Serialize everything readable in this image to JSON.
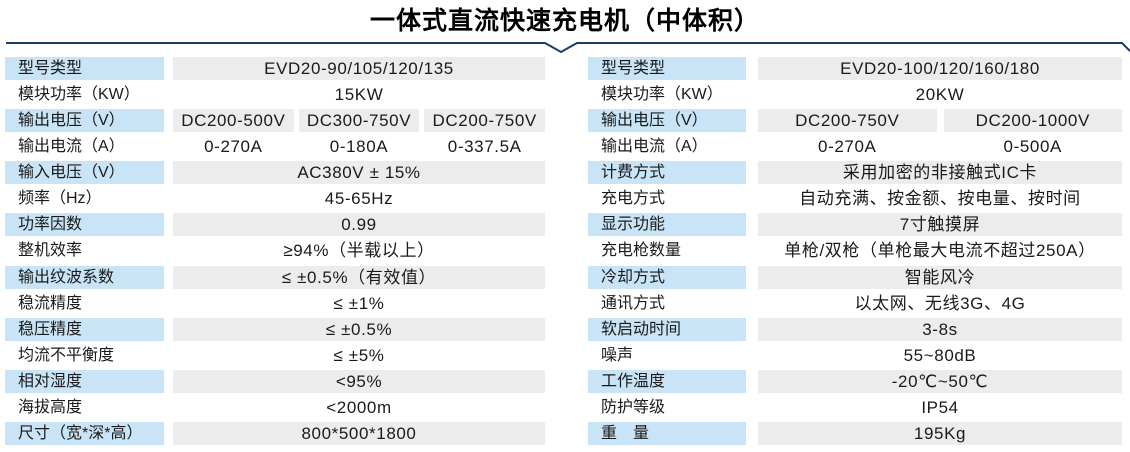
{
  "title": "一体式直流快速充电机（中体积）",
  "colors": {
    "header_rule": "#1e3a66",
    "label_background": "#c9e4f6",
    "value_background": "#ececec",
    "text": "#1a1a1a"
  },
  "left_table": {
    "rows": [
      {
        "label": "型号类型",
        "values": [
          "EVD20-90/105/120/135"
        ]
      },
      {
        "label": "模块功率（KW）",
        "values": [
          "15KW"
        ]
      },
      {
        "label": "输出电压（V）",
        "values": [
          "DC200-500V",
          "DC300-750V",
          "DC200-750V"
        ]
      },
      {
        "label": "输出电流（A）",
        "values": [
          "0-270A",
          "0-180A",
          "0-337.5A"
        ]
      },
      {
        "label": "输入电压（V）",
        "values": [
          "AC380V ± 15%"
        ]
      },
      {
        "label": "频率（Hz）",
        "values": [
          "45-65Hz"
        ]
      },
      {
        "label": "功率因数",
        "values": [
          "0.99"
        ]
      },
      {
        "label": "整机效率",
        "values": [
          "≥94%（半载以上）"
        ]
      },
      {
        "label": "输出纹波系数",
        "values": [
          "≤ ±0.5%（有效值）"
        ]
      },
      {
        "label": "稳流精度",
        "values": [
          "≤ ±1%"
        ]
      },
      {
        "label": "稳压精度",
        "values": [
          "≤ ±0.5%"
        ]
      },
      {
        "label": "均流不平衡度",
        "values": [
          "≤ ±5%"
        ]
      },
      {
        "label": "相对湿度",
        "values": [
          "<95%"
        ]
      },
      {
        "label": "海拔高度",
        "values": [
          "<2000m"
        ]
      },
      {
        "label": "尺寸（宽*深*高）",
        "values": [
          "800*500*1800"
        ]
      }
    ]
  },
  "right_table": {
    "rows": [
      {
        "label": "型号类型",
        "values": [
          "EVD20-100/120/160/180"
        ]
      },
      {
        "label": "模块功率（KW）",
        "values": [
          "20KW"
        ]
      },
      {
        "label": "输出电压（V）",
        "values": [
          "DC200-750V",
          "DC200-1000V"
        ]
      },
      {
        "label": "输出电流（A）",
        "values": [
          "0-270A",
          "0-500A"
        ]
      },
      {
        "label": "计费方式",
        "values": [
          "采用加密的非接触式IC卡"
        ]
      },
      {
        "label": "充电方式",
        "values": [
          "自动充满、按金额、按电量、按时间"
        ]
      },
      {
        "label": "显示功能",
        "values": [
          "7寸触摸屏"
        ]
      },
      {
        "label": "充电枪数量",
        "values": [
          "单枪/双枪（单枪最大电流不超过250A）"
        ]
      },
      {
        "label": "冷却方式",
        "values": [
          "智能风冷"
        ]
      },
      {
        "label": "通讯方式",
        "values": [
          "以太网、无线3G、4G"
        ]
      },
      {
        "label": "软启动时间",
        "values": [
          "3-8s"
        ]
      },
      {
        "label": "噪声",
        "values": [
          "55~80dB"
        ]
      },
      {
        "label": "工作温度",
        "values": [
          "-20℃~50℃"
        ]
      },
      {
        "label": "防护等级",
        "values": [
          "IP54"
        ]
      },
      {
        "label": "重　量",
        "values": [
          "195Kg"
        ]
      }
    ]
  }
}
